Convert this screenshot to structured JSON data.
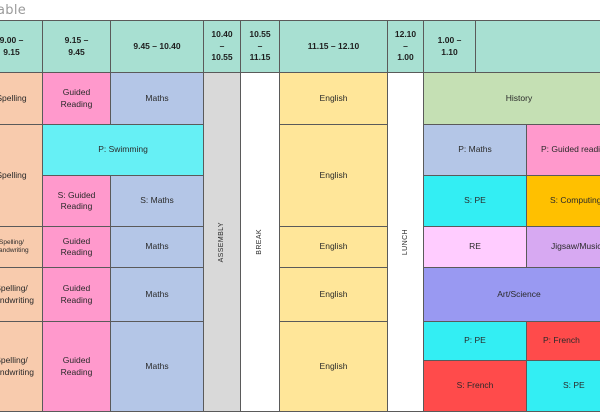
{
  "title": "able",
  "colors": {
    "header": "#a8e0d2",
    "spelling": "#f8cbad",
    "guided_reading": "#ff99cc",
    "maths": "#b4c6e7",
    "assembly": "#d9d9d9",
    "break": "#ffffff",
    "english": "#ffe699",
    "lunch": "#ffffff",
    "history": "#c5e0b4",
    "swimming": "#66f0f5",
    "pe": "#33eef3",
    "computing": "#ffc000",
    "re": "#ffccff",
    "jigsaw_music": "#d7a9f2",
    "art_science": "#9999f2",
    "french": "#ff4b4b"
  },
  "header": {
    "t1": "9.00 –\n9.15",
    "t2": "9.15 –\n9.45",
    "t3": "9.45 – 10.40",
    "t4": "10.40\n–\n10.55",
    "t5": "10.55\n–\n11.15",
    "t6": "11.15 – 12.10",
    "t7": "12.10\n–\n1.00",
    "t8": "1.00 –\n1.10",
    "t9": ""
  },
  "rows": {
    "r1": {
      "spelling": "Spelling",
      "guided": "Guided\nReading",
      "maths": "Maths",
      "english": "English",
      "afternoon": "History"
    },
    "r2": {
      "spelling": "Spelling",
      "swimming": "P: Swimming",
      "s_guided": "S: Guided\nReading",
      "s_maths": "S: Maths",
      "english": "English",
      "p_maths": "P: Maths",
      "p_guided": "P: Guided reading",
      "s_pe": "S: PE",
      "s_computing": "S: Computing"
    },
    "r3": {
      "spelling": "Spelling/\nHandwriting",
      "guided": "Guided\nReading",
      "maths": "Maths",
      "english": "English",
      "re": "RE",
      "jigsaw": "Jigsaw/Music"
    },
    "r4": {
      "spelling": "Spelling/\nHandwriting",
      "guided": "Guided\nReading",
      "maths": "Maths",
      "english": "English",
      "afternoon": "Art/Science"
    },
    "r5": {
      "spelling": "Spelling/\nHandwriting",
      "guided": "Guided\nReading",
      "maths": "Maths",
      "english": "English",
      "p_pe": "P: PE",
      "p_french": "P: French",
      "s_french": "S: French",
      "s_pe": "S: PE"
    }
  },
  "vertical": {
    "assembly": "ASSEMBLY",
    "break": "BREAK",
    "lunch": "LUNCH"
  }
}
